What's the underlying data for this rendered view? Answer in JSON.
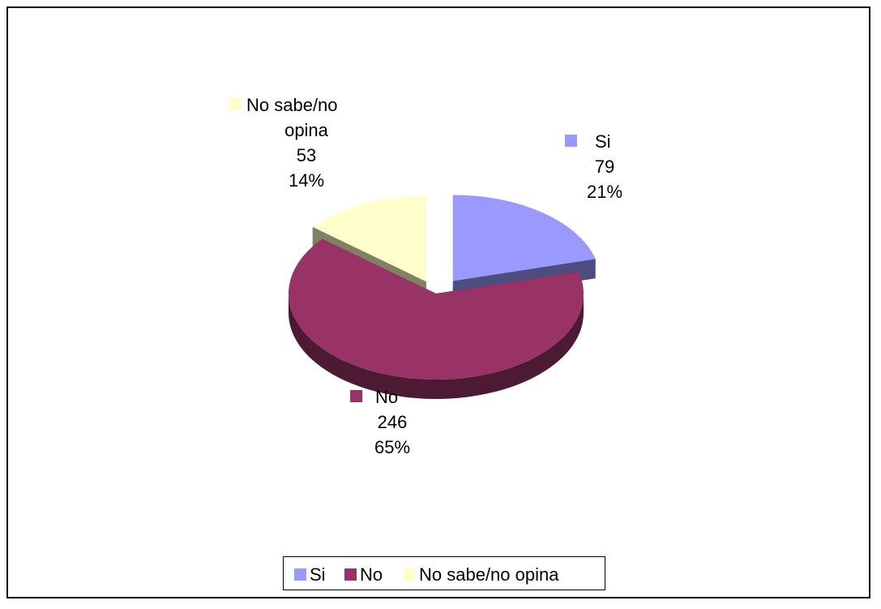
{
  "chart_data": {
    "type": "pie",
    "title": "",
    "slices": [
      {
        "label": "Si",
        "value": 79,
        "percent": "21%",
        "color": "#9999FF",
        "side_color": "#4D4D80"
      },
      {
        "label": "No",
        "value": 246,
        "percent": "65%",
        "color": "#993366",
        "side_color": "#4D1A33"
      },
      {
        "label": "No sabe/no opina",
        "value": 53,
        "percent": "14%",
        "color": "#FFFFCC",
        "side_color": "#808066"
      }
    ],
    "style": "3d-exploded",
    "legend": {
      "placement": "bottom",
      "entries": [
        "Si",
        "No",
        "No sabe/no opina"
      ]
    },
    "data_labels": [
      {
        "lines": [
          "Si",
          "79",
          "21%"
        ]
      },
      {
        "lines": [
          "No",
          "246",
          "65%"
        ]
      },
      {
        "lines": [
          "No sabe/no",
          "opina",
          "53",
          "14%"
        ]
      }
    ]
  }
}
